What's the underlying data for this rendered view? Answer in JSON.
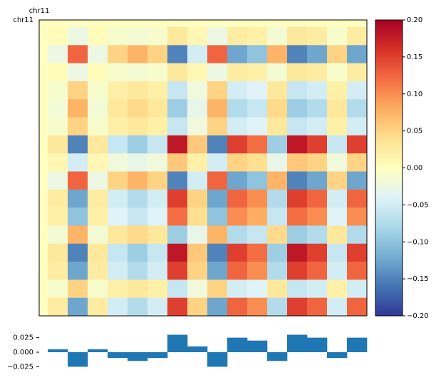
{
  "chart_data": {
    "type": "heatmap",
    "x_label": "chr11",
    "y_label": "chr11",
    "colormap": "RdYlBu_r",
    "empty_color": "#fefec0",
    "clim": [
      -0.2,
      0.2
    ],
    "cticks": [
      {
        "value": -0.2,
        "label": "−0.20"
      },
      {
        "value": -0.15,
        "label": "−0.15"
      },
      {
        "value": -0.1,
        "label": "−0.10"
      },
      {
        "value": -0.05,
        "label": "−0.05"
      },
      {
        "value": 0,
        "label": "0.00"
      },
      0.05,
      {
        "value": 0.1,
        "label": "0.10"
      },
      0.15,
      {
        "value": 0.2,
        "label": "0.20"
      }
    ],
    "matrix": [
      [
        0.005,
        -0.025,
        0.005,
        -0.01,
        -0.015,
        -0.01,
        0.03,
        0.01,
        -0.025,
        0.025,
        0.02,
        -0.015,
        0.03,
        0.025,
        -0.01,
        0.025
      ],
      [
        -0.025,
        0.125,
        -0.025,
        0.05,
        0.075,
        0.05,
        -0.15,
        -0.05,
        0.125,
        -0.125,
        -0.1,
        0.075,
        -0.15,
        -0.125,
        0.05,
        -0.125
      ],
      [
        0.005,
        -0.025,
        0.005,
        -0.01,
        -0.015,
        -0.01,
        0.03,
        0.01,
        -0.025,
        0.025,
        0.02,
        -0.015,
        0.03,
        0.025,
        -0.01,
        0.025
      ],
      [
        -0.01,
        0.05,
        -0.01,
        0.02,
        0.03,
        0.02,
        -0.06,
        -0.02,
        0.05,
        -0.05,
        -0.04,
        0.03,
        -0.06,
        -0.05,
        0.02,
        -0.05
      ],
      [
        -0.015,
        0.075,
        -0.015,
        0.03,
        0.045,
        0.03,
        -0.09,
        -0.03,
        0.075,
        -0.075,
        -0.06,
        0.045,
        -0.09,
        -0.075,
        0.03,
        -0.075
      ],
      [
        -0.01,
        0.05,
        -0.01,
        0.02,
        0.03,
        0.02,
        -0.06,
        -0.02,
        0.05,
        -0.05,
        -0.04,
        0.03,
        -0.06,
        -0.05,
        0.02,
        -0.05
      ],
      [
        0.03,
        -0.15,
        0.03,
        -0.06,
        -0.09,
        -0.06,
        0.18,
        0.06,
        -0.15,
        0.15,
        0.12,
        -0.09,
        0.18,
        0.15,
        -0.06,
        0.15
      ],
      [
        0.01,
        -0.05,
        0.01,
        -0.02,
        -0.03,
        -0.02,
        0.06,
        0.02,
        -0.05,
        0.05,
        0.04,
        -0.03,
        0.06,
        0.05,
        -0.02,
        0.05
      ],
      [
        -0.025,
        0.125,
        -0.025,
        0.05,
        0.075,
        0.05,
        -0.15,
        -0.05,
        0.125,
        -0.125,
        -0.1,
        0.075,
        -0.15,
        -0.125,
        0.05,
        -0.125
      ],
      [
        0.025,
        -0.125,
        0.025,
        -0.05,
        -0.075,
        -0.05,
        0.15,
        0.05,
        -0.125,
        0.125,
        0.1,
        -0.075,
        0.15,
        0.125,
        -0.05,
        0.125
      ],
      [
        0.02,
        -0.1,
        0.02,
        -0.04,
        -0.06,
        -0.04,
        0.12,
        0.04,
        -0.1,
        0.1,
        0.08,
        -0.06,
        0.12,
        0.1,
        -0.04,
        0.1
      ],
      [
        -0.015,
        0.075,
        -0.015,
        0.03,
        0.045,
        0.03,
        -0.09,
        -0.03,
        0.075,
        -0.075,
        -0.06,
        0.045,
        -0.09,
        -0.075,
        0.03,
        -0.075
      ],
      [
        0.03,
        -0.15,
        0.03,
        -0.06,
        -0.09,
        -0.06,
        0.18,
        0.06,
        -0.15,
        0.15,
        0.12,
        -0.09,
        0.18,
        0.15,
        -0.06,
        0.15
      ],
      [
        0.025,
        -0.125,
        0.025,
        -0.05,
        -0.075,
        -0.05,
        0.15,
        0.05,
        -0.125,
        0.125,
        0.1,
        -0.075,
        0.15,
        0.125,
        -0.05,
        0.125
      ],
      [
        -0.01,
        0.05,
        -0.01,
        0.02,
        0.03,
        0.02,
        -0.06,
        -0.02,
        0.05,
        -0.05,
        -0.04,
        0.03,
        -0.06,
        -0.05,
        0.02,
        -0.05
      ],
      [
        0.025,
        -0.125,
        0.025,
        -0.05,
        -0.075,
        -0.05,
        0.15,
        0.05,
        -0.125,
        0.125,
        0.1,
        -0.075,
        0.15,
        0.125,
        -0.05,
        0.125
      ]
    ],
    "track": {
      "type": "bar",
      "color": "#1f77b4",
      "values": [
        0.005,
        -0.025,
        0.005,
        -0.01,
        -0.015,
        -0.01,
        0.03,
        0.01,
        -0.025,
        0.025,
        0.02,
        -0.015,
        0.03,
        0.025,
        -0.01,
        0.025
      ],
      "ylim": [
        -0.038,
        0.038
      ],
      "yticks": [
        {
          "value": -0.025,
          "label": "−0.025"
        },
        {
          "value": 0,
          "label": "0.000"
        },
        0.025
      ]
    }
  }
}
